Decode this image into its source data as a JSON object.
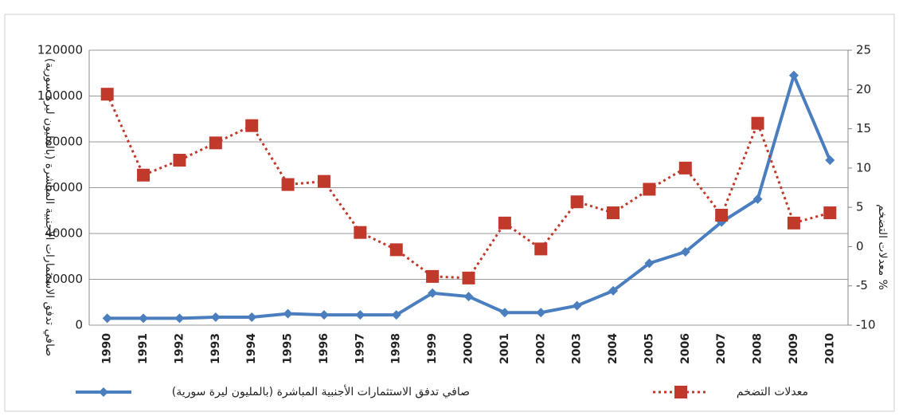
{
  "chart_data": {
    "type": "line",
    "categories": [
      "1990",
      "1991",
      "1992",
      "1993",
      "1994",
      "1995",
      "1996",
      "1997",
      "1998",
      "1999",
      "2000",
      "2001",
      "2002",
      "2003",
      "2004",
      "2005",
      "2006",
      "2007",
      "2008",
      "2009",
      "2010"
    ],
    "y_label": "صافي تدفق الاستثمارات الأجنبية المباشرة (بالمليون ليرة سورية)",
    "y2_label": "معدلات التضخم %",
    "ylim": [
      0,
      120000
    ],
    "yticks": [
      0,
      20000,
      40000,
      60000,
      80000,
      100000,
      120000
    ],
    "y2lim": [
      -10,
      25
    ],
    "y2ticks": [
      -10,
      -5,
      0,
      5,
      10,
      15,
      20,
      25
    ],
    "grid": true,
    "legend": "bottom",
    "series": [
      {
        "name": "صافي تدفق الاستثمارات الأجنبية المباشرة (بالمليون ليرة سورية)",
        "color": "#4a7ebf",
        "marker": "diamond",
        "line": "solid",
        "values": [
          3000,
          3000,
          3000,
          3500,
          3500,
          5000,
          4500,
          4500,
          4500,
          14000,
          12500,
          5500,
          5500,
          8500,
          15000,
          27000,
          32000,
          45000,
          55000,
          109000,
          72000
        ]
      },
      {
        "name": "معدلات التضخم",
        "color": "#c0392b",
        "marker": "square",
        "line": "dotted",
        "axis": "y2",
        "values": [
          19.4,
          9.1,
          11,
          13.2,
          15.4,
          7.9,
          8.3,
          1.8,
          -0.4,
          -3.8,
          -4,
          3,
          -0.3,
          5.7,
          4.3,
          7.3,
          10,
          4,
          15.7,
          3,
          4.3
        ]
      }
    ]
  }
}
